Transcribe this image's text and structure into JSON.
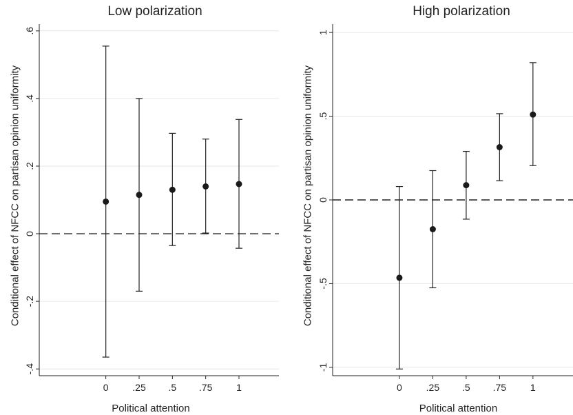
{
  "chart_data": [
    {
      "type": "scatter",
      "title": "Low polarization",
      "xlabel": "Political attention",
      "ylabel": "Conditional effect of NFCC on partisan opinion uniformity",
      "x_ticks": [
        "0",
        ".25",
        ".5",
        ".75",
        "1"
      ],
      "y_ticks": [
        "-.4",
        "-.2",
        "0",
        ".2",
        ".4",
        ".6"
      ],
      "y_tick_values": [
        -0.4,
        -0.2,
        0,
        0.2,
        0.4,
        0.6
      ],
      "ylim": [
        -0.42,
        0.62
      ],
      "xlim": [
        -0.5,
        1.3
      ],
      "grid": true,
      "reference_line": 0,
      "points": [
        {
          "x": 0,
          "y": 0.095,
          "lower": -0.365,
          "upper": 0.555
        },
        {
          "x": 0.25,
          "y": 0.115,
          "lower": -0.17,
          "upper": 0.4
        },
        {
          "x": 0.5,
          "y": 0.13,
          "lower": -0.035,
          "upper": 0.297
        },
        {
          "x": 0.75,
          "y": 0.14,
          "lower": 0.002,
          "upper": 0.28
        },
        {
          "x": 1,
          "y": 0.147,
          "lower": -0.043,
          "upper": 0.338
        }
      ]
    },
    {
      "type": "scatter",
      "title": "High polarization",
      "xlabel": "Political attention",
      "ylabel": "Conditional effect of NFCC on partisan opinion uniformity",
      "x_ticks": [
        "0",
        ".25",
        ".5",
        ".75",
        "1"
      ],
      "y_ticks": [
        "-1",
        "-.5",
        "0",
        ".5",
        "1"
      ],
      "y_tick_values": [
        -1,
        -0.5,
        0,
        0.5,
        1
      ],
      "ylim": [
        -1.05,
        1.05
      ],
      "xlim": [
        -0.5,
        1.3
      ],
      "grid": true,
      "reference_line": 0,
      "points": [
        {
          "x": 0,
          "y": -0.465,
          "lower": -1.01,
          "upper": 0.08
        },
        {
          "x": 0.25,
          "y": -0.175,
          "lower": -0.525,
          "upper": 0.175
        },
        {
          "x": 0.5,
          "y": 0.088,
          "lower": -0.115,
          "upper": 0.29
        },
        {
          "x": 0.75,
          "y": 0.315,
          "lower": 0.115,
          "upper": 0.515
        },
        {
          "x": 1,
          "y": 0.51,
          "lower": 0.205,
          "upper": 0.82
        }
      ]
    }
  ]
}
